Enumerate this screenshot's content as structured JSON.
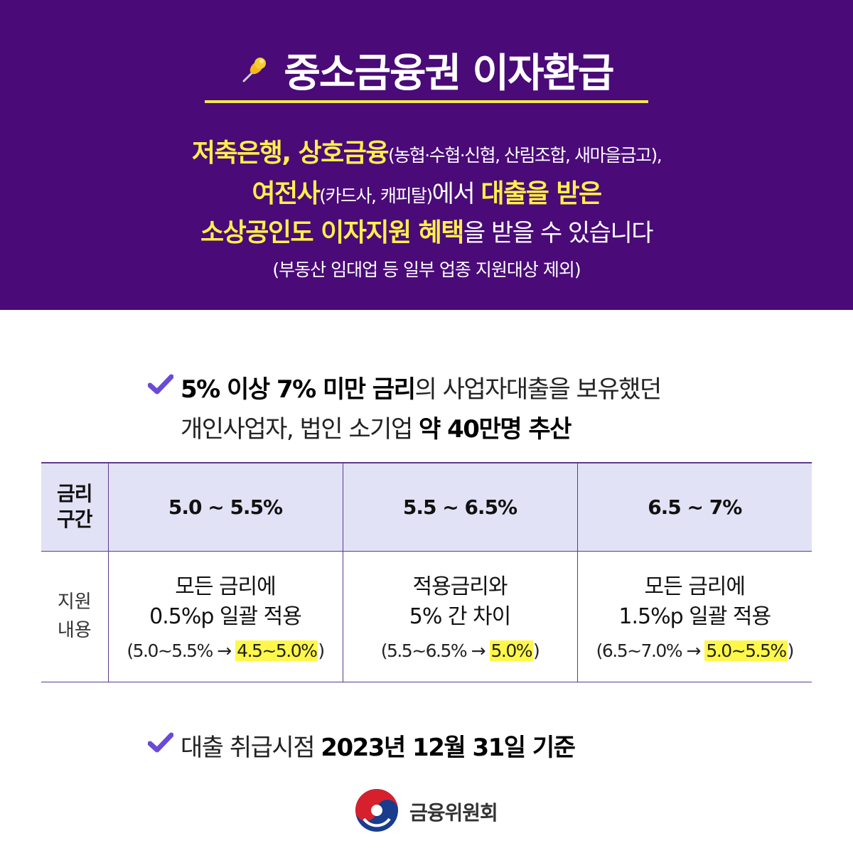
{
  "header": {
    "title": "중소금융권 이자환급",
    "line1_a": "저축은행, 상호금융",
    "line1_b": "(농협·수협·신협, 산림조합, 새마을금고),",
    "line2_a": "여전사",
    "line2_b": "(카드사, 캐피탈)",
    "line2_c": "에서 ",
    "line2_d": "대출을 받은",
    "line3_a": "소상공인도 이자지원 혜택",
    "line3_b": "을 받을 수 있습니다",
    "note": "(부동산 임대업 등 일부 업종 지원대상 제외)"
  },
  "bullet1": {
    "a": "5% 이상 7% 미만 금리",
    "b": "의 사업자대출을 보유했던",
    "c": "개인사업자, 법인 소기업 ",
    "d": "약 40만명 추산"
  },
  "table": {
    "header_label_1": "금리",
    "header_label_2": "구간",
    "columns": [
      "5.0 ~ 5.5%",
      "5.5 ~ 6.5%",
      "6.5 ~ 7%"
    ],
    "row_label_1": "지원",
    "row_label_2": "내용",
    "cells": [
      {
        "l1": "모든 금리에",
        "l2": "0.5%p 일괄 적용",
        "pre": "(5.0~5.5% → ",
        "hl": "4.5~5.0%",
        "post": ")"
      },
      {
        "l1": "적용금리와",
        "l2": "5% 간 차이",
        "pre": "(5.5~6.5% → ",
        "hl": "5.0%",
        "post": ")"
      },
      {
        "l1": "모든 금리에",
        "l2": "1.5%p 일괄 적용",
        "pre": "(6.5~7.0% → ",
        "hl": "5.0~5.5%",
        "post": ")"
      }
    ]
  },
  "bullet2": {
    "a": "대출 취급시점 ",
    "b": "2023년 12월 31일 기준"
  },
  "footer": {
    "org": "금융위원회"
  },
  "colors": {
    "header_bg": "#4a0a78",
    "highlight_text": "#fff04a",
    "table_header_bg": "#e2e2f6",
    "highlight_bg": "#fff84a",
    "check": "#6a4bd6"
  }
}
